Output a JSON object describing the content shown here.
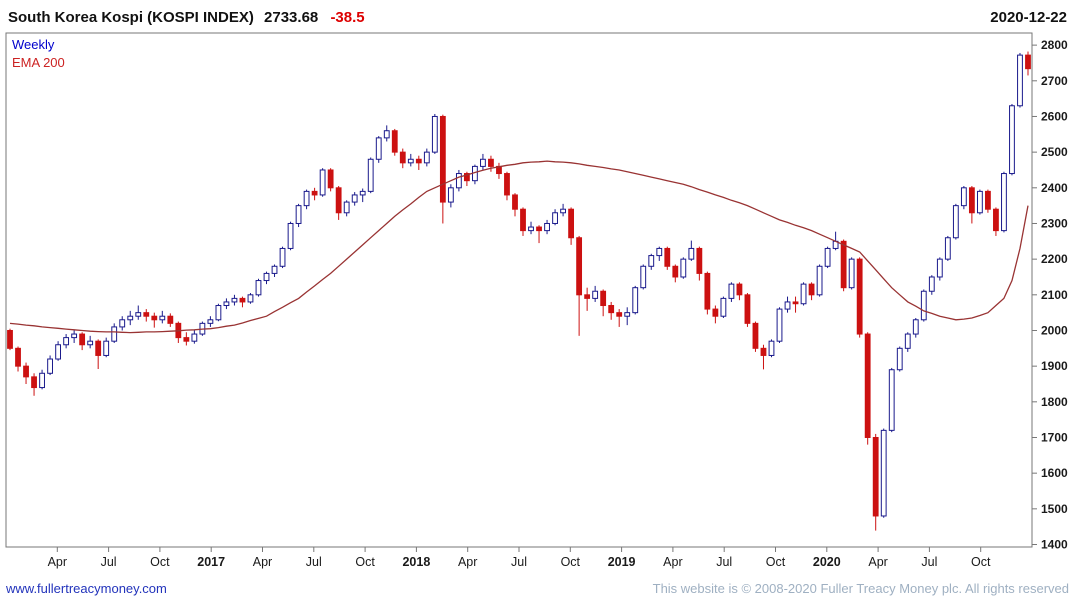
{
  "header": {
    "title": "South Korea Kospi (KOSPI INDEX)",
    "last_price": "2733.68",
    "change": "-38.5",
    "date": "2020-12-22"
  },
  "legend": {
    "timeframe": "Weekly",
    "overlay": "EMA 200"
  },
  "footer": {
    "site": "www.fullertreacymoney.com",
    "copyright": "This website is © 2008-2020 Fuller Treacy Money plc. All rights reserved"
  },
  "chart_data": {
    "type": "candlestick",
    "title": "South Korea Kospi (KOSPI INDEX)",
    "timeframe": "Weekly",
    "overlay": "EMA 200",
    "last_close": 2733.68,
    "change": -38.5,
    "date": "2020-12-22",
    "ylim": [
      1400,
      2800
    ],
    "y_ticks": [
      1400,
      1500,
      1600,
      1700,
      1800,
      1900,
      2000,
      2100,
      2200,
      2300,
      2400,
      2500,
      2600,
      2700,
      2800
    ],
    "x_ticks": [
      {
        "pos": 6.4,
        "label": "Apr",
        "bold": false
      },
      {
        "pos": 12.8,
        "label": "Jul",
        "bold": false
      },
      {
        "pos": 19.2,
        "label": "Oct",
        "bold": false
      },
      {
        "pos": 25.6,
        "label": "2017",
        "bold": true
      },
      {
        "pos": 32.0,
        "label": "Apr",
        "bold": false
      },
      {
        "pos": 38.4,
        "label": "Jul",
        "bold": false
      },
      {
        "pos": 44.8,
        "label": "Oct",
        "bold": false
      },
      {
        "pos": 51.2,
        "label": "2018",
        "bold": true
      },
      {
        "pos": 57.6,
        "label": "Apr",
        "bold": false
      },
      {
        "pos": 64.0,
        "label": "Jul",
        "bold": false
      },
      {
        "pos": 70.4,
        "label": "Oct",
        "bold": false
      },
      {
        "pos": 76.8,
        "label": "2019",
        "bold": true
      },
      {
        "pos": 83.2,
        "label": "Apr",
        "bold": false
      },
      {
        "pos": 89.6,
        "label": "Jul",
        "bold": false
      },
      {
        "pos": 96.0,
        "label": "Oct",
        "bold": false
      },
      {
        "pos": 102.4,
        "label": "2020",
        "bold": true
      },
      {
        "pos": 108.8,
        "label": "Apr",
        "bold": false
      },
      {
        "pos": 115.2,
        "label": "Jul",
        "bold": false
      },
      {
        "pos": 121.6,
        "label": "Oct",
        "bold": false
      }
    ],
    "colors": {
      "up_fill": "#ffffff",
      "up_stroke": "#1a1a8c",
      "down_fill": "#cc1111",
      "down_stroke": "#cc1111",
      "ema": "#993333",
      "axis": "#777777",
      "label": "#1a1a1a"
    },
    "candles": [
      [
        2000,
        2005,
        1945,
        1950
      ],
      [
        1950,
        1955,
        1885,
        1900
      ],
      [
        1900,
        1910,
        1850,
        1870
      ],
      [
        1870,
        1880,
        1817,
        1840
      ],
      [
        1840,
        1890,
        1835,
        1880
      ],
      [
        1880,
        1930,
        1875,
        1920
      ],
      [
        1920,
        1970,
        1915,
        1960
      ],
      [
        1960,
        1990,
        1950,
        1980
      ],
      [
        1980,
        2000,
        1965,
        1990
      ],
      [
        1990,
        1995,
        1945,
        1960
      ],
      [
        1960,
        1985,
        1950,
        1970
      ],
      [
        1970,
        1975,
        1892,
        1930
      ],
      [
        1930,
        1980,
        1925,
        1970
      ],
      [
        1970,
        2020,
        1965,
        2010
      ],
      [
        2010,
        2040,
        2000,
        2030
      ],
      [
        2030,
        2055,
        2015,
        2040
      ],
      [
        2040,
        2070,
        2030,
        2050
      ],
      [
        2050,
        2060,
        2025,
        2040
      ],
      [
        2040,
        2050,
        2008,
        2030
      ],
      [
        2030,
        2055,
        2020,
        2040
      ],
      [
        2040,
        2048,
        2010,
        2020
      ],
      [
        2020,
        2025,
        1965,
        1980
      ],
      [
        1980,
        1995,
        1958,
        1970
      ],
      [
        1970,
        2000,
        1963,
        1990
      ],
      [
        1990,
        2025,
        1985,
        2020
      ],
      [
        2020,
        2040,
        2010,
        2030
      ],
      [
        2030,
        2075,
        2026,
        2070
      ],
      [
        2070,
        2090,
        2060,
        2080
      ],
      [
        2080,
        2100,
        2070,
        2090
      ],
      [
        2090,
        2095,
        2065,
        2080
      ],
      [
        2080,
        2105,
        2075,
        2100
      ],
      [
        2100,
        2145,
        2095,
        2140
      ],
      [
        2140,
        2165,
        2130,
        2160
      ],
      [
        2160,
        2185,
        2150,
        2180
      ],
      [
        2180,
        2235,
        2175,
        2230
      ],
      [
        2230,
        2305,
        2225,
        2300
      ],
      [
        2300,
        2355,
        2290,
        2350
      ],
      [
        2350,
        2395,
        2340,
        2390
      ],
      [
        2390,
        2400,
        2365,
        2380
      ],
      [
        2380,
        2455,
        2375,
        2450
      ],
      [
        2450,
        2455,
        2390,
        2400
      ],
      [
        2400,
        2405,
        2310,
        2330
      ],
      [
        2330,
        2365,
        2320,
        2360
      ],
      [
        2360,
        2388,
        2350,
        2380
      ],
      [
        2380,
        2398,
        2360,
        2390
      ],
      [
        2390,
        2485,
        2385,
        2480
      ],
      [
        2480,
        2545,
        2470,
        2540
      ],
      [
        2540,
        2575,
        2530,
        2560
      ],
      [
        2560,
        2565,
        2490,
        2500
      ],
      [
        2500,
        2510,
        2455,
        2470
      ],
      [
        2470,
        2495,
        2460,
        2480
      ],
      [
        2480,
        2490,
        2450,
        2470
      ],
      [
        2470,
        2510,
        2460,
        2500
      ],
      [
        2500,
        2607,
        2495,
        2600
      ],
      [
        2600,
        2605,
        2300,
        2360
      ],
      [
        2360,
        2410,
        2345,
        2400
      ],
      [
        2400,
        2450,
        2390,
        2440
      ],
      [
        2440,
        2445,
        2405,
        2420
      ],
      [
        2420,
        2465,
        2410,
        2460
      ],
      [
        2460,
        2495,
        2450,
        2480
      ],
      [
        2480,
        2490,
        2445,
        2460
      ],
      [
        2460,
        2470,
        2425,
        2440
      ],
      [
        2440,
        2445,
        2365,
        2380
      ],
      [
        2380,
        2385,
        2320,
        2340
      ],
      [
        2340,
        2345,
        2265,
        2280
      ],
      [
        2280,
        2305,
        2270,
        2290
      ],
      [
        2290,
        2295,
        2245,
        2280
      ],
      [
        2280,
        2310,
        2270,
        2300
      ],
      [
        2300,
        2340,
        2295,
        2330
      ],
      [
        2330,
        2355,
        2320,
        2340
      ],
      [
        2340,
        2345,
        2240,
        2260
      ],
      [
        2260,
        2265,
        1985,
        2100
      ],
      [
        2100,
        2120,
        2055,
        2090
      ],
      [
        2090,
        2125,
        2080,
        2110
      ],
      [
        2110,
        2115,
        2040,
        2070
      ],
      [
        2070,
        2080,
        2030,
        2050
      ],
      [
        2050,
        2060,
        2010,
        2040
      ],
      [
        2040,
        2065,
        2015,
        2050
      ],
      [
        2050,
        2125,
        2045,
        2120
      ],
      [
        2120,
        2185,
        2115,
        2180
      ],
      [
        2180,
        2215,
        2170,
        2210
      ],
      [
        2210,
        2235,
        2195,
        2230
      ],
      [
        2230,
        2235,
        2170,
        2180
      ],
      [
        2180,
        2185,
        2135,
        2150
      ],
      [
        2150,
        2205,
        2145,
        2200
      ],
      [
        2200,
        2252,
        2195,
        2230
      ],
      [
        2230,
        2235,
        2140,
        2160
      ],
      [
        2160,
        2165,
        2045,
        2060
      ],
      [
        2060,
        2070,
        2020,
        2040
      ],
      [
        2040,
        2095,
        2035,
        2090
      ],
      [
        2090,
        2135,
        2080,
        2130
      ],
      [
        2130,
        2135,
        2085,
        2100
      ],
      [
        2100,
        2105,
        2010,
        2020
      ],
      [
        2020,
        2025,
        1940,
        1950
      ],
      [
        1950,
        1960,
        1891,
        1930
      ],
      [
        1930,
        1975,
        1925,
        1970
      ],
      [
        1970,
        2065,
        1965,
        2060
      ],
      [
        2060,
        2095,
        2050,
        2080
      ],
      [
        2080,
        2095,
        2050,
        2075
      ],
      [
        2075,
        2135,
        2070,
        2130
      ],
      [
        2130,
        2135,
        2085,
        2100
      ],
      [
        2100,
        2185,
        2095,
        2180
      ],
      [
        2180,
        2235,
        2175,
        2230
      ],
      [
        2230,
        2277,
        2225,
        2250
      ],
      [
        2250,
        2255,
        2110,
        2120
      ],
      [
        2120,
        2205,
        2115,
        2200
      ],
      [
        2200,
        2205,
        1980,
        1990
      ],
      [
        1990,
        1995,
        1680,
        1700
      ],
      [
        1700,
        1710,
        1439,
        1480
      ],
      [
        1480,
        1725,
        1475,
        1720
      ],
      [
        1720,
        1895,
        1715,
        1890
      ],
      [
        1890,
        1955,
        1885,
        1950
      ],
      [
        1950,
        1995,
        1940,
        1990
      ],
      [
        1990,
        2035,
        1980,
        2030
      ],
      [
        2030,
        2115,
        2025,
        2110
      ],
      [
        2110,
        2155,
        2100,
        2150
      ],
      [
        2150,
        2205,
        2140,
        2200
      ],
      [
        2200,
        2265,
        2195,
        2260
      ],
      [
        2260,
        2355,
        2255,
        2350
      ],
      [
        2350,
        2405,
        2340,
        2400
      ],
      [
        2400,
        2405,
        2300,
        2330
      ],
      [
        2330,
        2395,
        2325,
        2390
      ],
      [
        2390,
        2395,
        2330,
        2340
      ],
      [
        2340,
        2345,
        2265,
        2280
      ],
      [
        2280,
        2445,
        2275,
        2440
      ],
      [
        2440,
        2635,
        2435,
        2630
      ],
      [
        2630,
        2778,
        2625,
        2772
      ],
      [
        2772,
        2782,
        2715,
        2734
      ]
    ],
    "ema200": [
      2020,
      2018,
      2015,
      2013,
      2010,
      2008,
      2006,
      2004,
      2002,
      2000,
      1998,
      1997,
      1996,
      1996,
      1995,
      1994,
      1995,
      1996,
      1996,
      1997,
      1998,
      1999,
      2001,
      2002,
      2004,
      2005,
      2008,
      2012,
      2015,
      2021,
      2028,
      2034,
      2040,
      2053,
      2065,
      2078,
      2090,
      2108,
      2125,
      2143,
      2160,
      2180,
      2200,
      2220,
      2240,
      2260,
      2280,
      2300,
      2320,
      2338,
      2355,
      2373,
      2390,
      2400,
      2410,
      2420,
      2430,
      2436,
      2443,
      2449,
      2455,
      2459,
      2463,
      2466,
      2470,
      2472,
      2473,
      2475,
      2473,
      2472,
      2470,
      2467,
      2463,
      2460,
      2457,
      2453,
      2450,
      2445,
      2440,
      2435,
      2430,
      2425,
      2420,
      2415,
      2410,
      2403,
      2395,
      2388,
      2380,
      2373,
      2365,
      2358,
      2350,
      2340,
      2330,
      2320,
      2310,
      2303,
      2295,
      2288,
      2280,
      2270,
      2260,
      2250,
      2240,
      2230,
      2220,
      2195,
      2170,
      2145,
      2120,
      2100,
      2080,
      2068,
      2055,
      2048,
      2040,
      2035,
      2030,
      2032,
      2035,
      2042,
      2050,
      2070,
      2090,
      2140,
      2230,
      2350
    ]
  }
}
